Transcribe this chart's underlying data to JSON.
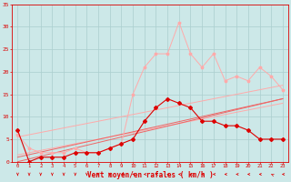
{
  "x": [
    0,
    1,
    2,
    3,
    4,
    5,
    6,
    7,
    8,
    9,
    10,
    11,
    12,
    13,
    14,
    15,
    16,
    17,
    18,
    19,
    20,
    21,
    22,
    23
  ],
  "line_gust": [
    6,
    3,
    2,
    2,
    2,
    3,
    2,
    2,
    3,
    4,
    15,
    21,
    24,
    24,
    31,
    24,
    21,
    24,
    18,
    19,
    18,
    21,
    19,
    16
  ],
  "line_main": [
    7,
    0,
    1,
    1,
    1,
    2,
    2,
    2,
    3,
    4,
    5,
    9,
    12,
    14,
    13,
    12,
    9,
    9,
    8,
    8,
    7,
    5,
    5,
    5
  ],
  "slope1": [
    0.0,
    0.61,
    1.22,
    1.83,
    2.44,
    3.04,
    3.65,
    4.26,
    4.87,
    5.48,
    6.09,
    6.7,
    7.3,
    7.91,
    8.52,
    9.13,
    9.74,
    10.35,
    10.96,
    11.57,
    12.17,
    12.78,
    13.39,
    14.0
  ],
  "slope2": [
    1.0,
    1.57,
    2.13,
    2.7,
    3.26,
    3.83,
    4.39,
    4.96,
    5.52,
    6.09,
    6.65,
    7.22,
    7.78,
    8.35,
    8.91,
    9.48,
    10.04,
    10.61,
    11.17,
    11.74,
    12.3,
    12.87,
    13.43,
    14.0
  ],
  "slope3": [
    1.5,
    2.0,
    2.5,
    3.0,
    3.5,
    4.0,
    4.5,
    5.0,
    5.5,
    6.0,
    6.5,
    7.0,
    7.5,
    8.0,
    8.5,
    9.0,
    9.5,
    10.0,
    10.5,
    11.0,
    11.5,
    12.0,
    12.5,
    13.0
  ],
  "slope4": [
    5.5,
    6.0,
    6.5,
    7.0,
    7.5,
    8.0,
    8.5,
    9.0,
    9.5,
    10.0,
    10.5,
    11.0,
    11.5,
    12.0,
    12.5,
    13.0,
    13.5,
    14.0,
    14.5,
    15.0,
    15.5,
    16.0,
    16.5,
    17.0
  ],
  "bg_color": "#cce8e8",
  "grid_color": "#aacece",
  "color_dark": "#dd0000",
  "color_mid": "#ee6666",
  "color_light": "#ffaaaa",
  "xlabel": "Vent moyen/en rafales ( km/h )",
  "ylim": [
    0,
    35
  ],
  "xlim": [
    -0.5,
    23.5
  ],
  "yticks": [
    0,
    5,
    10,
    15,
    20,
    25,
    30,
    35
  ],
  "xticks": [
    0,
    1,
    2,
    3,
    4,
    5,
    6,
    7,
    8,
    9,
    10,
    11,
    12,
    13,
    14,
    15,
    16,
    17,
    18,
    19,
    20,
    21,
    22,
    23
  ]
}
